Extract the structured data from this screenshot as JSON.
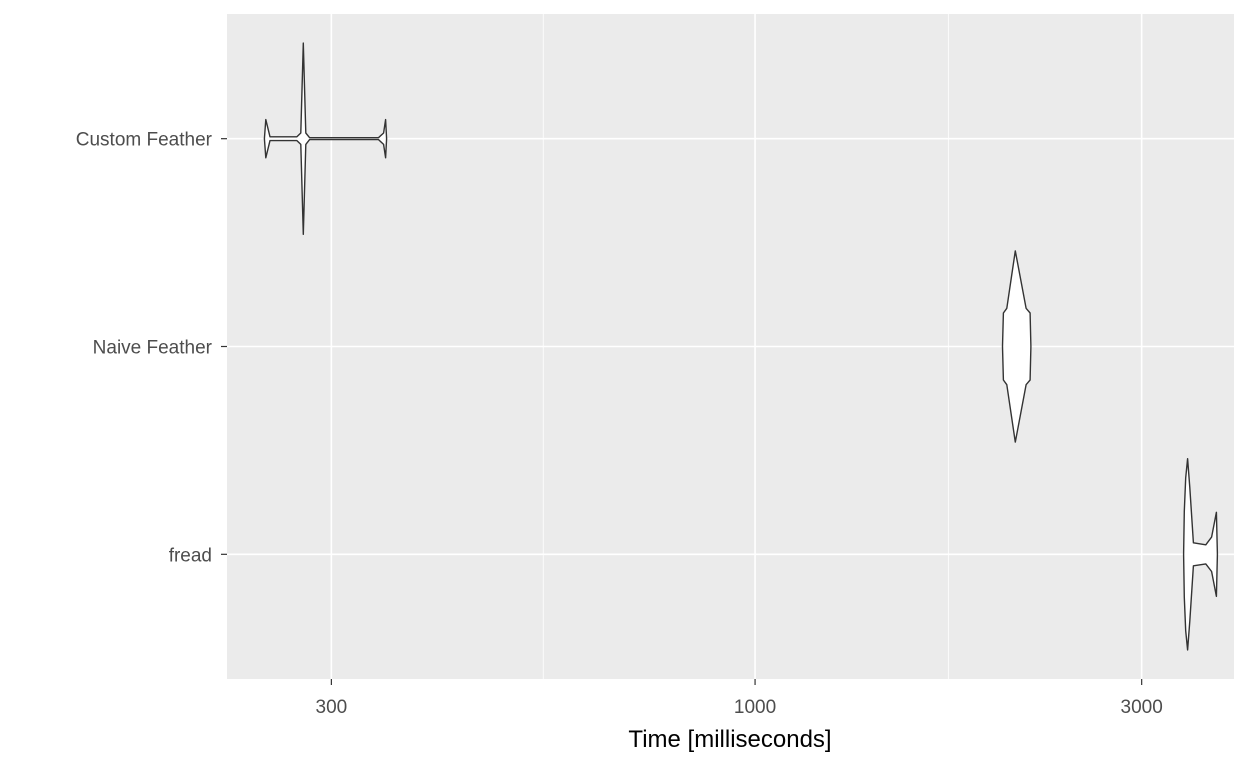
{
  "chart_data": {
    "type": "violin",
    "orientation": "horizontal",
    "x_scale": "log10",
    "xlim": [
      223,
      3900
    ],
    "xlabel": "Time [milliseconds]",
    "ylabel": "",
    "x_ticks": [
      300,
      1000,
      3000
    ],
    "x_tick_labels": [
      "300",
      "1000",
      "3000"
    ],
    "categories": [
      "Custom Feather",
      "Naive Feather",
      "fread"
    ],
    "grid": true,
    "series": [
      {
        "category": "Custom Feather",
        "min": 248,
        "max": 350,
        "max_width_fraction": 0.46,
        "density": [
          {
            "t": 248,
            "w": 0.0
          },
          {
            "t": 249,
            "w": 0.2
          },
          {
            "t": 252,
            "w": 0.02
          },
          {
            "t": 272,
            "w": 0.02
          },
          {
            "t": 275,
            "w": 0.06
          },
          {
            "t": 277,
            "w": 1.0
          },
          {
            "t": 279,
            "w": 0.06
          },
          {
            "t": 282,
            "w": 0.01
          },
          {
            "t": 343,
            "w": 0.01
          },
          {
            "t": 348,
            "w": 0.06
          },
          {
            "t": 350,
            "w": 0.2
          },
          {
            "t": 351,
            "w": 0.0
          }
        ]
      },
      {
        "category": "Naive Feather",
        "min": 2020,
        "max": 2190,
        "max_width_fraction": 0.46,
        "density": [
          {
            "t": 2020,
            "w": 0.0
          },
          {
            "t": 2025,
            "w": 0.35
          },
          {
            "t": 2045,
            "w": 0.4
          },
          {
            "t": 2095,
            "w": 1.0
          },
          {
            "t": 2160,
            "w": 0.4
          },
          {
            "t": 2185,
            "w": 0.35
          },
          {
            "t": 2190,
            "w": 0.0
          }
        ]
      },
      {
        "category": "fread",
        "min": 3380,
        "max": 3720,
        "max_width_fraction": 0.46,
        "density": [
          {
            "t": 3380,
            "w": 0.0
          },
          {
            "t": 3386,
            "w": 0.45
          },
          {
            "t": 3400,
            "w": 0.8
          },
          {
            "t": 3418,
            "w": 1.0
          },
          {
            "t": 3440,
            "w": 0.7
          },
          {
            "t": 3475,
            "w": 0.12
          },
          {
            "t": 3600,
            "w": 0.1
          },
          {
            "t": 3660,
            "w": 0.18
          },
          {
            "t": 3710,
            "w": 0.44
          },
          {
            "t": 3720,
            "w": 0.0
          }
        ]
      }
    ]
  }
}
